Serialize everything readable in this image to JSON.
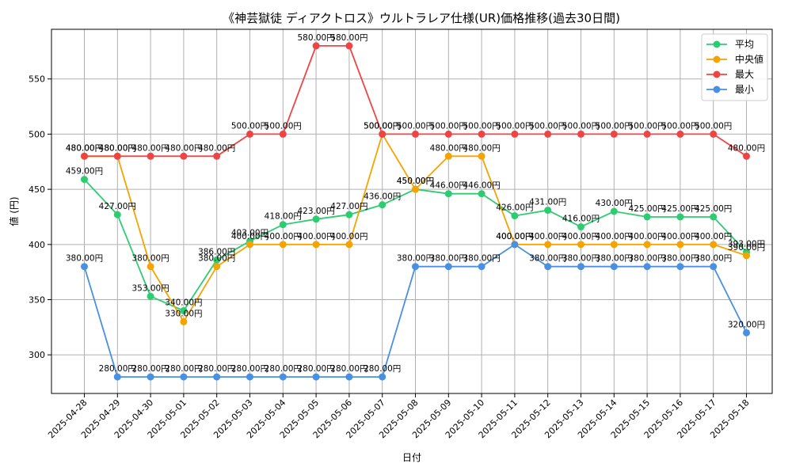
{
  "chart_data": {
    "type": "line",
    "title": "《神芸獄徒 ディアクトロス》ウルトラレア仕様(UR)価格推移(過去30日間)",
    "xlabel": "日付",
    "ylabel": "値 (円)",
    "ylim": [
      265,
      595
    ],
    "yticks": [
      300,
      350,
      400,
      450,
      500,
      550
    ],
    "grid": true,
    "legend_position": "top-right",
    "value_suffix": ".00円",
    "categories": [
      "2025-04-28",
      "2025-04-29",
      "2025-04-30",
      "2025-05-01",
      "2025-05-02",
      "2025-05-03",
      "2025-05-04",
      "2025-05-05",
      "2025-05-06",
      "2025-05-07",
      "2025-05-08",
      "2025-05-09",
      "2025-05-10",
      "2025-05-11",
      "2025-05-12",
      "2025-05-13",
      "2025-05-14",
      "2025-05-15",
      "2025-05-16",
      "2025-05-17",
      "2025-05-18"
    ],
    "series": [
      {
        "name": "平均",
        "color": "#2ecc71",
        "values": [
          459,
          427,
          353,
          340,
          386,
          403,
          418,
          423,
          427,
          436,
          450,
          446,
          446,
          426,
          431,
          416,
          430,
          425,
          425,
          425,
          393
        ]
      },
      {
        "name": "中央値",
        "color": "#f5a300",
        "values": [
          480,
          480,
          380,
          330,
          380,
          400,
          400,
          400,
          400,
          500,
          450,
          480,
          480,
          400,
          400,
          400,
          400,
          400,
          400,
          400,
          390
        ]
      },
      {
        "name": "最大",
        "color": "#ef4444",
        "values": [
          480,
          480,
          480,
          480,
          480,
          500,
          500,
          580,
          580,
          500,
          500,
          500,
          500,
          500,
          500,
          500,
          500,
          500,
          500,
          500,
          480
        ]
      },
      {
        "name": "最小",
        "color": "#4a90e2",
        "values": [
          380,
          280,
          280,
          280,
          280,
          280,
          280,
          280,
          280,
          280,
          380,
          380,
          380,
          400,
          380,
          380,
          380,
          380,
          380,
          380,
          320
        ]
      }
    ]
  }
}
